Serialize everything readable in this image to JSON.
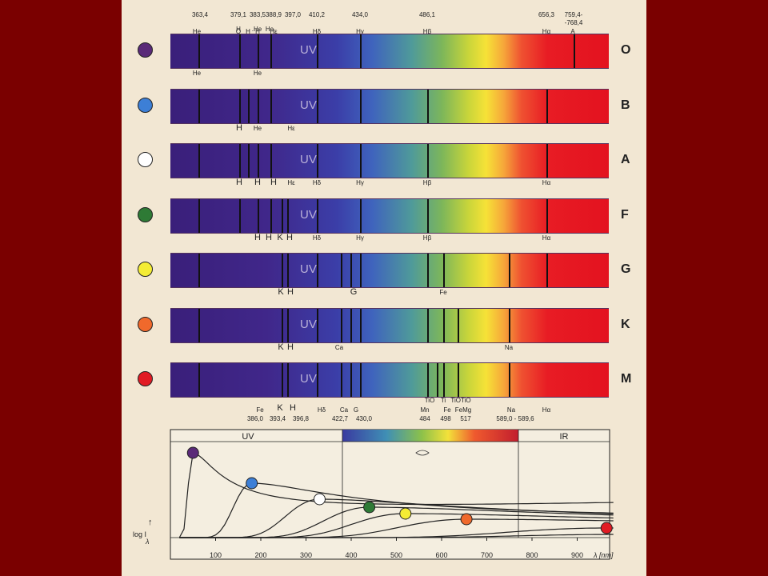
{
  "top_labels": [
    {
      "t": "363,4",
      "x": 98
    },
    {
      "t": "379,1",
      "x": 146
    },
    {
      "t": "383,5",
      "x": 170
    },
    {
      "t": "388,9",
      "x": 190
    },
    {
      "t": "397,0",
      "x": 214
    },
    {
      "t": "410,2",
      "x": 244
    },
    {
      "t": "434,0",
      "x": 298
    },
    {
      "t": "486,1",
      "x": 382
    },
    {
      "t": "656,3",
      "x": 531
    },
    {
      "t": "759,4-",
      "x": 565
    },
    {
      "t": "-768,4",
      "x": 565,
      "row": 2
    },
    {
      "t": "H",
      "x": 146,
      "row": 3
    },
    {
      "t": ".He",
      "x": 169,
      "row": 3
    },
    {
      "t": "He",
      "x": 185,
      "row": 3
    },
    {
      "t": "He",
      "x": 94,
      "row": 4
    },
    {
      "t": "O",
      "x": 146,
      "row": 4
    },
    {
      "t": "H",
      "x": 158,
      "row": 4
    },
    {
      "t": "H",
      "x": 170,
      "row": 4
    },
    {
      "t": "Hε",
      "x": 190,
      "row": 4
    },
    {
      "t": "Hδ",
      "x": 244,
      "row": 4
    },
    {
      "t": "Hγ",
      "x": 298,
      "row": 4
    },
    {
      "t": "Hβ",
      "x": 382,
      "row": 4
    },
    {
      "t": "Hα",
      "x": 531,
      "row": 4
    },
    {
      "t": "A",
      "x": 564,
      "row": 4
    }
  ],
  "spectra": [
    {
      "cls": "O",
      "color": "#5a2a78",
      "lines": [
        96,
        147,
        170,
        186,
        244,
        298,
        565
      ],
      "labels": [
        {
          "t": "He",
          "x": 94
        },
        {
          "t": "He",
          "x": 170
        }
      ]
    },
    {
      "cls": "B",
      "color": "#3d7fd6",
      "lines": [
        96,
        147,
        158,
        170,
        186,
        244,
        298,
        382,
        531
      ],
      "labels": [
        {
          "t": "H",
          "x": 147
        },
        {
          "t": "He",
          "x": 170
        },
        {
          "t": "Hε",
          "x": 212
        }
      ]
    },
    {
      "cls": "A",
      "color": "#ffffff",
      "lines": [
        96,
        147,
        158,
        170,
        186,
        244,
        298,
        382,
        531
      ],
      "labels": [
        {
          "t": "H",
          "x": 147
        },
        {
          "t": "H",
          "x": 170
        },
        {
          "t": "H",
          "x": 190
        },
        {
          "t": "Hε",
          "x": 212
        },
        {
          "t": "Hδ",
          "x": 244
        },
        {
          "t": "Hγ",
          "x": 298
        },
        {
          "t": "Hβ",
          "x": 382
        },
        {
          "t": "Hα",
          "x": 531
        }
      ]
    },
    {
      "cls": "F",
      "color": "#2e7a35",
      "lines": [
        96,
        147,
        170,
        186,
        200,
        207,
        244,
        298,
        382,
        531
      ],
      "labels": [
        {
          "t": "H",
          "x": 170
        },
        {
          "t": "H",
          "x": 184
        },
        {
          "t": "K",
          "x": 198
        },
        {
          "t": "H",
          "x": 210
        },
        {
          "t": "Hδ",
          "x": 244
        },
        {
          "t": "Hγ",
          "x": 298
        },
        {
          "t": "Hβ",
          "x": 382
        },
        {
          "t": "Hα",
          "x": 531
        }
      ]
    },
    {
      "cls": "G",
      "color": "#f4ec34",
      "lines": [
        96,
        200,
        207,
        244,
        274,
        286,
        298,
        382,
        402,
        484,
        531
      ],
      "labels": [
        {
          "t": "K",
          "x": 199
        },
        {
          "t": "H",
          "x": 211
        },
        {
          "t": "G",
          "x": 290
        },
        {
          "t": "Fe",
          "x": 402
        }
      ]
    },
    {
      "cls": "K",
      "color": "#f0692c",
      "lines": [
        96,
        200,
        207,
        244,
        274,
        286,
        298,
        382,
        402,
        420,
        484
      ],
      "labels": [
        {
          "t": "K",
          "x": 199
        },
        {
          "t": "H",
          "x": 211
        },
        {
          "t": "Ca",
          "x": 272
        },
        {
          "t": "Na",
          "x": 484
        }
      ]
    },
    {
      "cls": "M",
      "color": "#e11b24",
      "lines": [
        96,
        200,
        207,
        244,
        274,
        286,
        298,
        382,
        394,
        402,
        420,
        484
      ],
      "labels": []
    }
  ],
  "bottom_labels": [
    {
      "t": "TiO",
      "x": 385,
      "row": 0
    },
    {
      "t": "Ti",
      "x": 402,
      "row": 0
    },
    {
      "t": "TiOTiO",
      "x": 424,
      "row": 0
    },
    {
      "t": "Fe",
      "x": 173,
      "row": 1
    },
    {
      "t": "K",
      "x": 198,
      "row": 1,
      "big": true
    },
    {
      "t": "H",
      "x": 214,
      "row": 1,
      "big": true
    },
    {
      "t": "Hδ",
      "x": 250,
      "row": 1
    },
    {
      "t": "Ca",
      "x": 278,
      "row": 1
    },
    {
      "t": "G",
      "x": 293,
      "row": 1
    },
    {
      "t": "Mn",
      "x": 379,
      "row": 1
    },
    {
      "t": "Fe",
      "x": 407,
      "row": 1
    },
    {
      "t": "FeMg",
      "x": 427,
      "row": 1
    },
    {
      "t": "Na",
      "x": 487,
      "row": 1
    },
    {
      "t": "Hα",
      "x": 531,
      "row": 1
    },
    {
      "t": "386,0",
      "x": 167,
      "row": 2
    },
    {
      "t": "393,4",
      "x": 195,
      "row": 2
    },
    {
      "t": "396,8",
      "x": 224,
      "row": 2
    },
    {
      "t": "422,7",
      "x": 273,
      "row": 2
    },
    {
      "t": "430,0",
      "x": 303,
      "row": 2
    },
    {
      "t": "484",
      "x": 379,
      "row": 2
    },
    {
      "t": "498",
      "x": 405,
      "row": 2
    },
    {
      "t": "517",
      "x": 430,
      "row": 2
    },
    {
      "t": "589,0 - 589,6",
      "x": 492,
      "row": 2
    }
  ],
  "uv_text": "UV",
  "plot": {
    "band_uv": "UV",
    "band_ir": "IR",
    "x_ticks": [
      "100",
      "200",
      "300",
      "400",
      "500",
      "600",
      "700",
      "800",
      "900"
    ],
    "x_unit": "λ [nm]",
    "y_label_line1": "↑",
    "y_label_line2": "log I",
    "y_label_sub": "λ"
  },
  "curve_points": [
    {
      "cls": "O",
      "lambda": 50,
      "color": "#5a2a78"
    },
    {
      "cls": "B",
      "lambda": 180,
      "color": "#3d7fd6"
    },
    {
      "cls": "A",
      "lambda": 330,
      "color": "#ffffff"
    },
    {
      "cls": "F",
      "lambda": 440,
      "color": "#2e7a35"
    },
    {
      "cls": "G",
      "lambda": 520,
      "color": "#f4ec34"
    },
    {
      "cls": "K",
      "lambda": 655,
      "color": "#f0692c"
    },
    {
      "cls": "M",
      "lambda": 965,
      "color": "#e11b24"
    }
  ]
}
